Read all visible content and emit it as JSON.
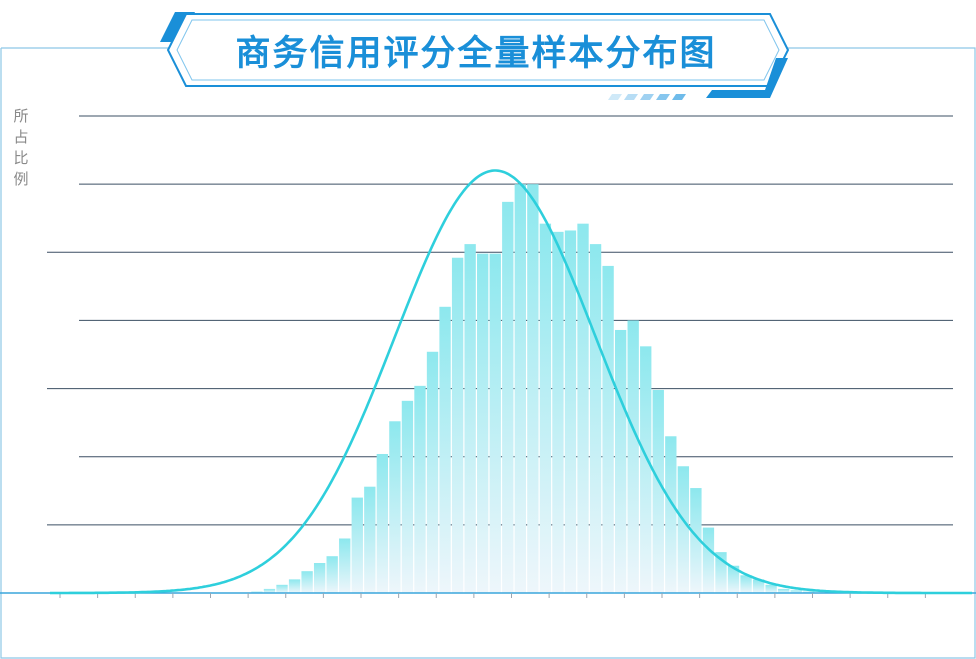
{
  "title": "商务信用评分全量样本分布图",
  "chart_data": {
    "type": "bar",
    "title": "商务信用评分全量样本分布图",
    "ylabel": "所占比例",
    "xlabel": "",
    "grid": true,
    "values": [
      0,
      0,
      0,
      0,
      0,
      0,
      0,
      0,
      0,
      0,
      0,
      0,
      0,
      0,
      0,
      0,
      0.01,
      0.03,
      0.06,
      0.1,
      0.16,
      0.22,
      0.27,
      0.4,
      0.7,
      0.78,
      1.02,
      1.26,
      1.41,
      1.52,
      1.77,
      2.1,
      2.46,
      2.56,
      2.49,
      2.49,
      2.87,
      3.0,
      3.0,
      2.71,
      2.65,
      2.66,
      2.71,
      2.56,
      2.4,
      1.93,
      2.0,
      1.81,
      1.49,
      1.15,
      0.93,
      0.77,
      0.48,
      0.3,
      0.2,
      0.13,
      0.1,
      0.06,
      0.03,
      0.02,
      0.01,
      0,
      0,
      0,
      0,
      0,
      0,
      0,
      0,
      0,
      0,
      0
    ],
    "curve": {
      "type": "normal",
      "mean": 35.5,
      "sd": 8.0,
      "peak": 3.1
    },
    "ylim": [
      0,
      3.5
    ]
  },
  "colors": {
    "accent": "#1a8fd8",
    "bar_top": "#8de8ee",
    "bar_bottom": "#eef6fb",
    "curve": "#2ecfdc",
    "grid": "#3b4f63",
    "frame": "#8ec7e6"
  }
}
